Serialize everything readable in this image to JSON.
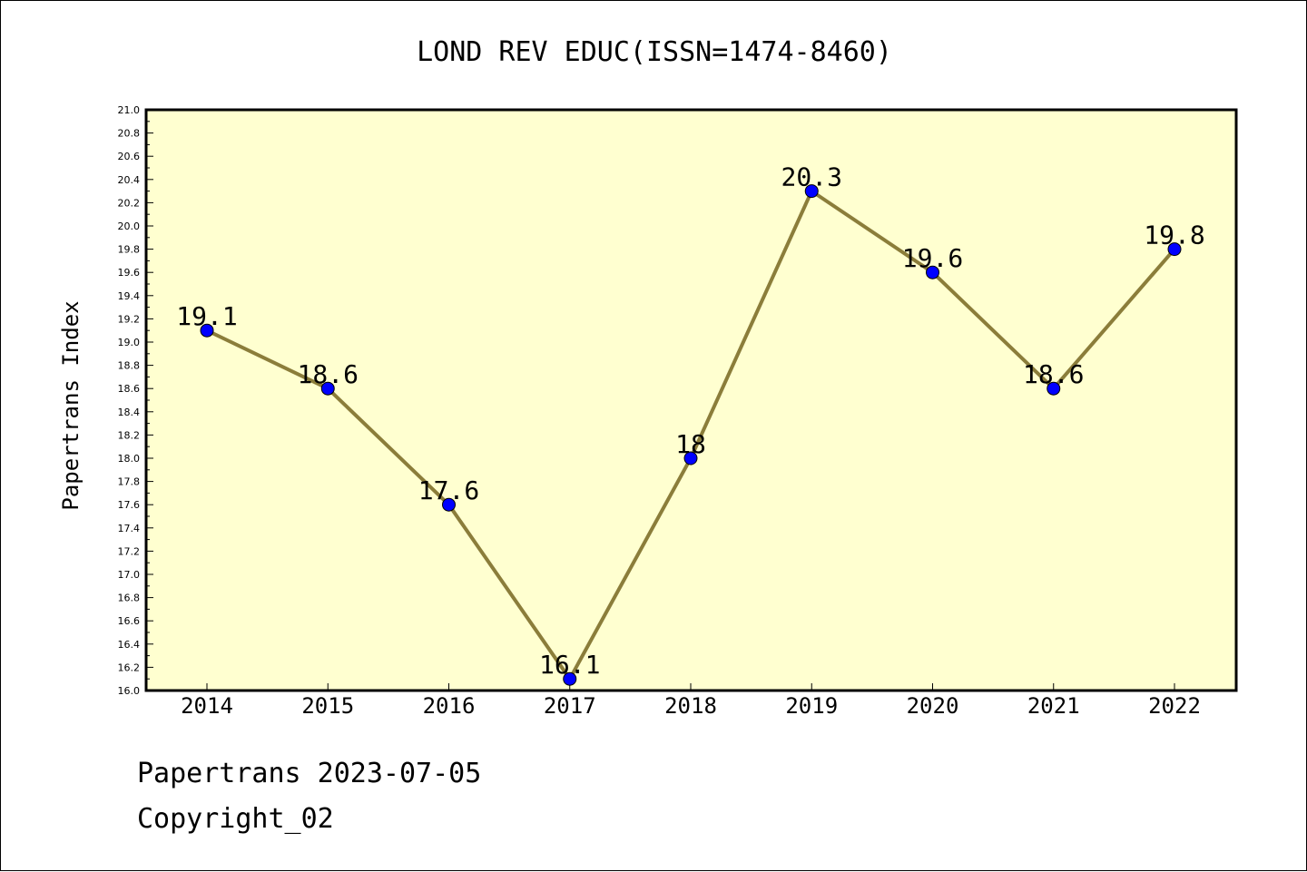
{
  "chart_data": {
    "type": "line",
    "title": "LOND REV EDUC(ISSN=1474-8460)",
    "xlabel": "",
    "ylabel": "Papertrans Index",
    "categories": [
      "2014",
      "2015",
      "2016",
      "2017",
      "2018",
      "2019",
      "2020",
      "2021",
      "2022"
    ],
    "series": [
      {
        "values": [
          19.1,
          18.6,
          17.6,
          16.1,
          18.0,
          20.3,
          19.6,
          18.6,
          19.8
        ],
        "data_labels": [
          "19.1",
          "18.6",
          "17.6",
          "16.1",
          "18",
          "20.3",
          "19.6",
          "18.6",
          "19.8"
        ],
        "line_color": "#8B7D3A",
        "marker_color": "#0000FF"
      }
    ],
    "ylim": [
      16.0,
      21.0
    ],
    "ytick_step": 0.2,
    "grid": false,
    "plot_background": "#FFFFD0"
  },
  "footer": {
    "line1": "Papertrans 2023-07-05",
    "line2": "Copyright_02"
  }
}
